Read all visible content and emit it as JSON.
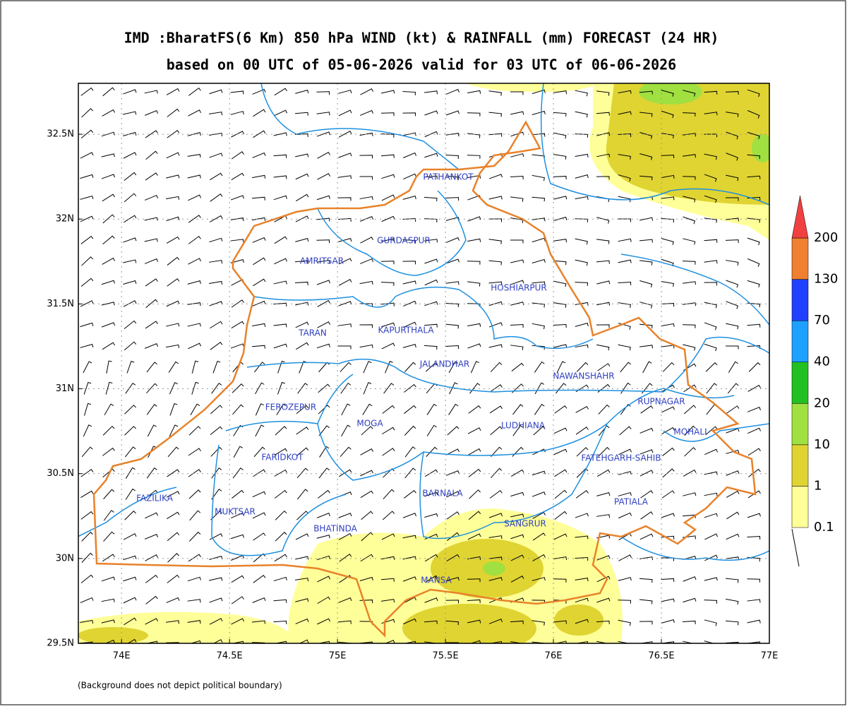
{
  "title": [
    "IMD :BharatFS(6 Km) 850 hPa WIND (kt) & RAINFALL (mm) FORECAST (24 HR)",
    "based on 00 UTC of 05-06-2026 valid for 03 UTC of 06-06-2026"
  ],
  "map": {
    "xlim": [
      73.8,
      77.0
    ],
    "ylim": [
      29.5,
      32.8
    ],
    "grid": true,
    "xticks": [
      {
        "value": 74,
        "label": "74E"
      },
      {
        "value": 74.5,
        "label": "74.5E"
      },
      {
        "value": 75,
        "label": "75E"
      },
      {
        "value": 75.5,
        "label": "75.5E"
      },
      {
        "value": 76,
        "label": "76E"
      },
      {
        "value": 76.5,
        "label": "76.5E"
      },
      {
        "value": 77,
        "label": "77E"
      }
    ],
    "yticks": [
      {
        "value": 29.5,
        "label": "29.5N"
      },
      {
        "value": 30,
        "label": "30N"
      },
      {
        "value": 30.5,
        "label": "30.5N"
      },
      {
        "value": 31,
        "label": "31N"
      },
      {
        "value": 31.5,
        "label": "31.5N"
      },
      {
        "value": 32,
        "label": "32N"
      },
      {
        "value": 32.5,
        "label": "32.5N"
      }
    ],
    "districts": [
      "PATHANKOT",
      "GURDASPUR",
      "AMRITSAR",
      "HOSHIARPUR",
      "TARAN",
      "KAPURTHALA",
      "JALANDHAR",
      "NAWANSHAHR",
      "FEROZEPUR",
      "RUPNAGAR",
      "MOGA",
      "LUDHIANA",
      "MOHALI",
      "FARIDKOT",
      "FATEHGARH-SAHIB",
      "BARNALA",
      "FAZILIKA",
      "PATIALA",
      "MUKTSAR",
      "BHATINDA",
      "SANGRUR",
      "MANSA"
    ]
  },
  "legend": {
    "levels": [
      0.1,
      1,
      10,
      20,
      40,
      70,
      130,
      200
    ],
    "colors": [
      "#ffff99",
      "#e0d432",
      "#a0e040",
      "#22c022",
      "#1ea0ff",
      "#2040ff",
      "#f08030",
      "#f04040"
    ]
  },
  "footnote": "(Background does not depict political boundary)"
}
